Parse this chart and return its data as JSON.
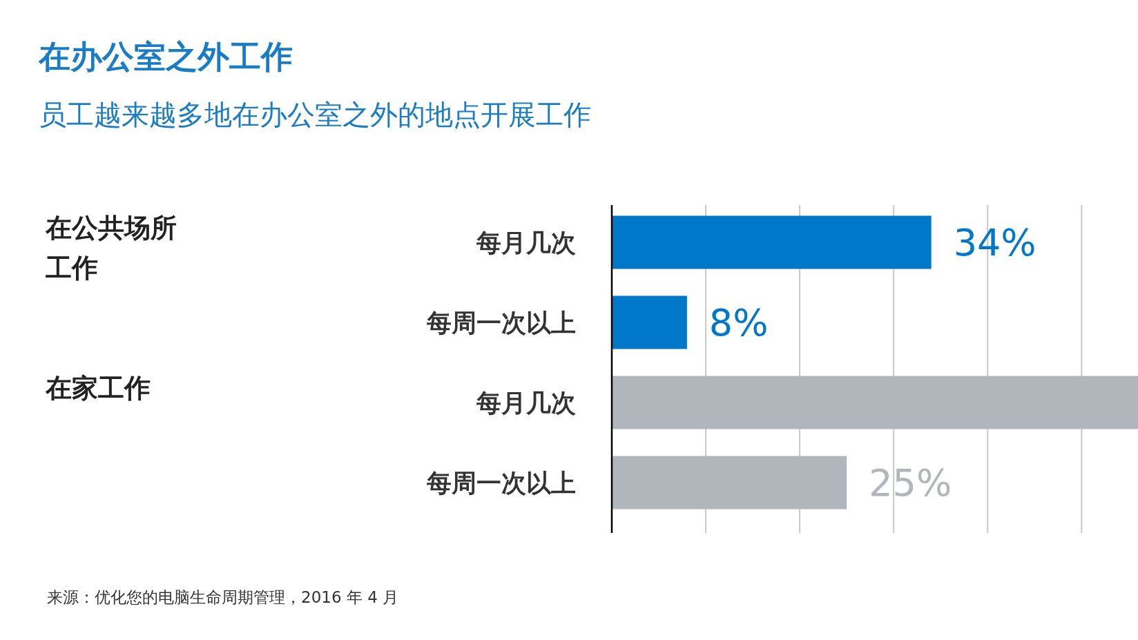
{
  "chart_data": {
    "type": "bar",
    "orientation": "horizontal",
    "title": "在办公室之外工作",
    "subtitle": "员工越来越多地在办公室之外的地点开展工作",
    "categories": [
      "每月几次",
      "每周一次以上",
      "每月几次",
      "每周一次以上"
    ],
    "values": [
      34,
      8,
      56,
      25
    ],
    "colors": [
      "#0077c8",
      "#0077c8",
      "#b1b6bc",
      "#b1b6bc"
    ],
    "value_labels": [
      "34%",
      "8%",
      null,
      "25%"
    ],
    "xlim": [
      0,
      56
    ],
    "xticks": [
      {
        "value": 0,
        "label": null
      },
      {
        "value": 10,
        "label": null
      },
      {
        "value": 20,
        "label": null
      },
      {
        "value": 30,
        "label": null
      },
      {
        "value": 40,
        "label": null
      },
      {
        "value": 50,
        "label": null
      }
    ],
    "grid": "x",
    "annotations": [
      "在公共场所工作",
      "在家工作",
      "来源：优化您的电脑生命周期管理，2016 年 4 月"
    ]
  }
}
